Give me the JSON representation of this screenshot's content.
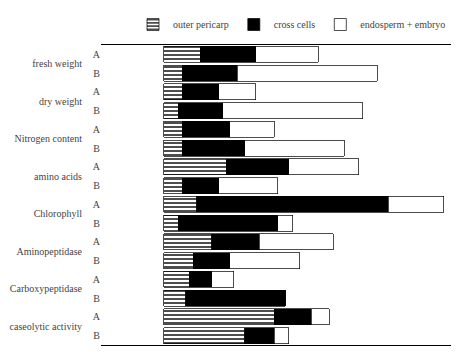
{
  "chart_data": {
    "type": "bar",
    "orientation": "horizontal",
    "stacked": true,
    "categories": [
      "fresh weight",
      "dry weight",
      "Nitrogen content",
      "amino acids",
      "Chlorophyll",
      "Aminopeptidase",
      "Carboxypeptidase",
      "caseolytic activity"
    ],
    "rows": [
      "A",
      "B"
    ],
    "series": [
      {
        "name": "outer pericarp",
        "color": "white",
        "marker": "hlines",
        "values": [
          [
            0.1,
            0.05
          ],
          [
            0.05,
            0.04
          ],
          [
            0.05,
            0.05
          ],
          [
            0.17,
            0.05
          ],
          [
            0.09,
            0.04
          ],
          [
            0.13,
            0.08
          ],
          [
            0.07,
            0.06
          ],
          [
            0.3,
            0.22
          ]
        ]
      },
      {
        "name": "cross cells",
        "color": "black",
        "values": [
          [
            0.15,
            0.15
          ],
          [
            0.1,
            0.12
          ],
          [
            0.13,
            0.17
          ],
          [
            0.17,
            0.1
          ],
          [
            0.52,
            0.27
          ],
          [
            0.13,
            0.1
          ],
          [
            0.06,
            0.27
          ],
          [
            0.1,
            0.08
          ]
        ]
      },
      {
        "name": "endosperm + embryo",
        "color": "white",
        "values": [
          [
            0.17,
            0.38
          ],
          [
            0.1,
            0.38
          ],
          [
            0.12,
            0.27
          ],
          [
            0.19,
            0.16
          ],
          [
            0.15,
            0.04
          ],
          [
            0.2,
            0.19
          ],
          [
            0.06,
            0.0
          ],
          [
            0.05,
            0.04
          ]
        ]
      }
    ],
    "xlim": [
      -0.17,
      0.78
    ],
    "tick_labels": "y",
    "grid": false,
    "legend": "upper right"
  }
}
